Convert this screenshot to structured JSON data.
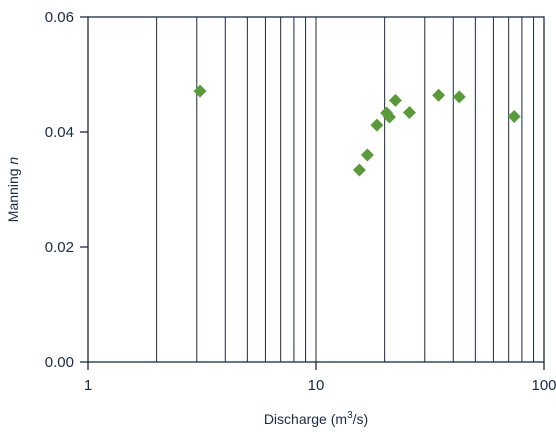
{
  "chart_data": {
    "type": "scatter",
    "title": "",
    "xlabel": {
      "prefix": "Discharge (m",
      "superscript": "3",
      "suffix": "/s)"
    },
    "ylabel": {
      "prefix": "Manning ",
      "italic": "n"
    },
    "xscale": "log",
    "xlim": [
      1,
      100
    ],
    "ylim": [
      0.0,
      0.06
    ],
    "x_ticks": [
      1,
      10,
      100
    ],
    "x_tick_labels": [
      "1",
      "10",
      "100"
    ],
    "y_ticks": [
      0.0,
      0.02,
      0.04,
      0.06
    ],
    "y_tick_labels": [
      "0.00",
      "0.02",
      "0.04",
      "0.06"
    ],
    "grid": "vertical-log",
    "legend": "none",
    "colors": {
      "marker": "#5a9a3a",
      "axis": "#1a2a44",
      "grid": "#1a2a44"
    },
    "marker_shape": "diamond",
    "points": [
      {
        "x": 3.1,
        "y": 0.0471
      },
      {
        "x": 15.5,
        "y": 0.0334
      },
      {
        "x": 16.8,
        "y": 0.036
      },
      {
        "x": 18.5,
        "y": 0.0412
      },
      {
        "x": 20.4,
        "y": 0.0433
      },
      {
        "x": 21.0,
        "y": 0.0426
      },
      {
        "x": 22.3,
        "y": 0.0455
      },
      {
        "x": 25.7,
        "y": 0.0434
      },
      {
        "x": 34.5,
        "y": 0.0464
      },
      {
        "x": 42.5,
        "y": 0.0461
      },
      {
        "x": 74.0,
        "y": 0.0427
      }
    ]
  }
}
